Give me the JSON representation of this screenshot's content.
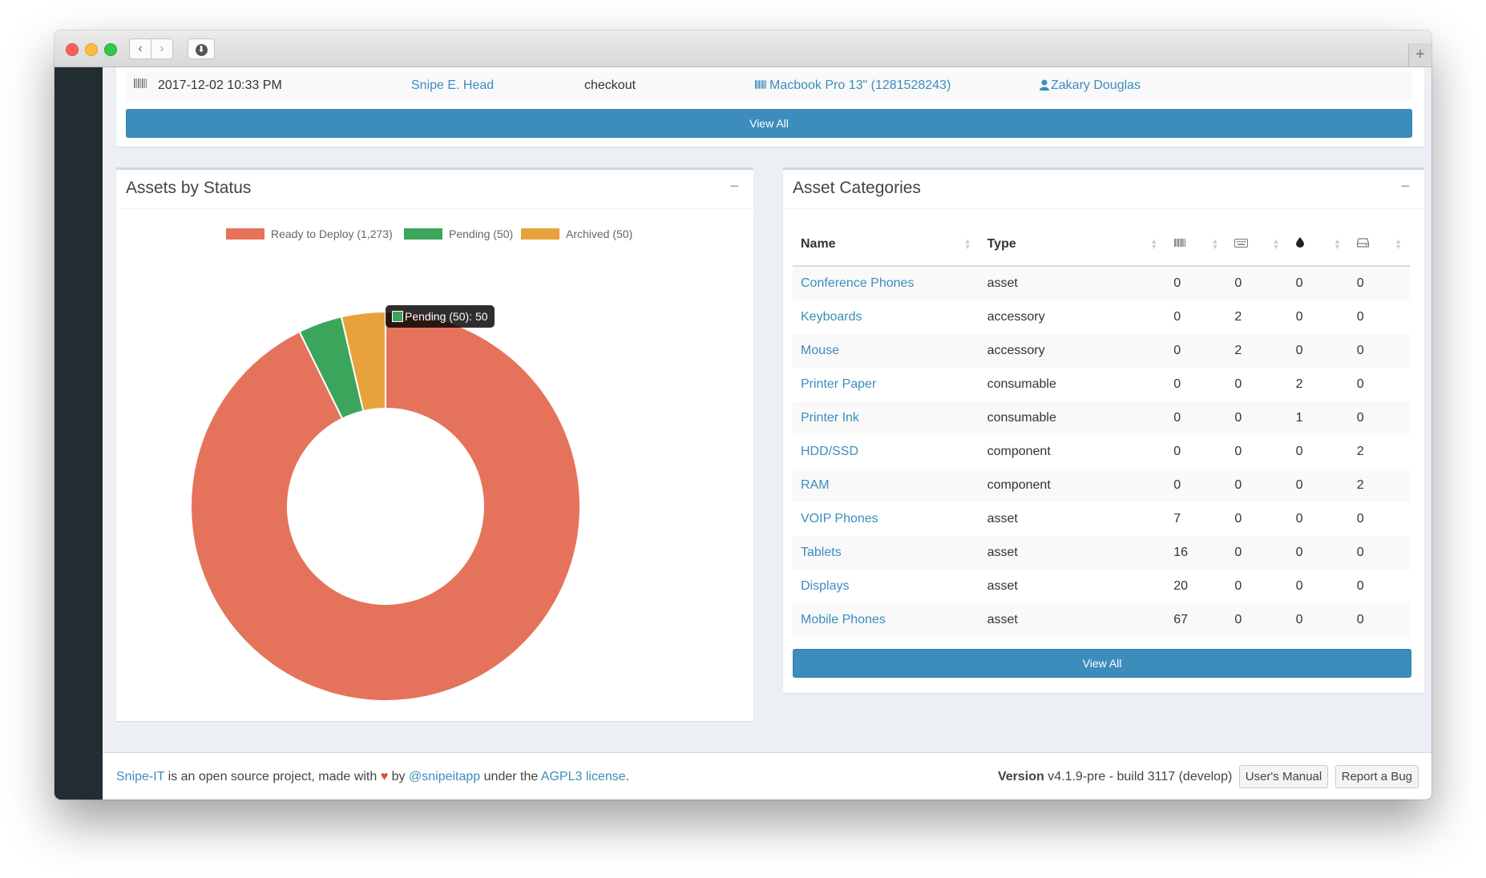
{
  "window": {
    "buttons": {
      "back": "‹",
      "forward": "›",
      "new_tab": "+"
    }
  },
  "history_row": {
    "date": "2017-12-02 10:33 PM",
    "admin": "Snipe E. Head",
    "action": "checkout",
    "item": "Macbook Pro 13\" (1281528243)",
    "target": "Zakary Douglas",
    "view_all_label": "View All"
  },
  "status_box": {
    "title": "Assets by Status",
    "collapse_label": "−",
    "tooltip": "Pending (50): 50"
  },
  "chart_data": {
    "type": "pie",
    "donut": true,
    "legend_position": "top",
    "categories": [
      "Ready to Deploy (1,273)",
      "Pending (50)",
      "Archived (50)"
    ],
    "values": [
      1273,
      50,
      50
    ],
    "colors": [
      "#e5735c",
      "#3ca55c",
      "#e8a23c"
    ]
  },
  "categories_box": {
    "title": "Asset Categories",
    "collapse_label": "−",
    "columns": {
      "name": "Name",
      "type": "Type",
      "icon_assets": "barcode-icon",
      "icon_accessories": "keyboard-icon",
      "icon_consumables": "tint-icon",
      "icon_components": "hdd-icon"
    },
    "rows": [
      {
        "name": "Conference Phones",
        "type": "asset",
        "assets": "0",
        "accessories": "0",
        "consumables": "0",
        "components": "0"
      },
      {
        "name": "Keyboards",
        "type": "accessory",
        "assets": "0",
        "accessories": "2",
        "consumables": "0",
        "components": "0"
      },
      {
        "name": "Mouse",
        "type": "accessory",
        "assets": "0",
        "accessories": "2",
        "consumables": "0",
        "components": "0"
      },
      {
        "name": "Printer Paper",
        "type": "consumable",
        "assets": "0",
        "accessories": "0",
        "consumables": "2",
        "components": "0"
      },
      {
        "name": "Printer Ink",
        "type": "consumable",
        "assets": "0",
        "accessories": "0",
        "consumables": "1",
        "components": "0"
      },
      {
        "name": "HDD/SSD",
        "type": "component",
        "assets": "0",
        "accessories": "0",
        "consumables": "0",
        "components": "2"
      },
      {
        "name": "RAM",
        "type": "component",
        "assets": "0",
        "accessories": "0",
        "consumables": "0",
        "components": "2"
      },
      {
        "name": "VOIP Phones",
        "type": "asset",
        "assets": "7",
        "accessories": "0",
        "consumables": "0",
        "components": "0"
      },
      {
        "name": "Tablets",
        "type": "asset",
        "assets": "16",
        "accessories": "0",
        "consumables": "0",
        "components": "0"
      },
      {
        "name": "Displays",
        "type": "asset",
        "assets": "20",
        "accessories": "0",
        "consumables": "0",
        "components": "0"
      },
      {
        "name": "Mobile Phones",
        "type": "asset",
        "assets": "67",
        "accessories": "0",
        "consumables": "0",
        "components": "0"
      }
    ],
    "view_all_label": "View All"
  },
  "footer": {
    "project_link": "Snipe-IT",
    "text1": "is an open source project, made with",
    "text2": "by",
    "twitter_link": "@snipeitapp",
    "text3": "under the",
    "license_link": "AGPL3 license",
    "text4": ".",
    "version_label": "Version",
    "version_text": "v4.1.9-pre - build 3117 (develop)",
    "manual_button": "User's Manual",
    "bug_button": "Report a Bug"
  }
}
